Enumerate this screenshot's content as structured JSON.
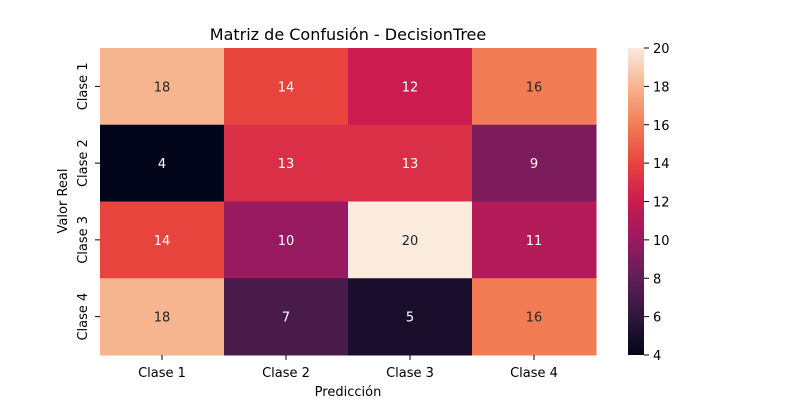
{
  "chart_data": {
    "type": "heatmap",
    "title": "Matriz de Confusión - DecisionTree",
    "xlabel": "Predicción",
    "ylabel": "Valor Real",
    "x_categories": [
      "Clase 1",
      "Clase 2",
      "Clase 3",
      "Clase 4"
    ],
    "y_categories": [
      "Clase 1",
      "Clase 2",
      "Clase 3",
      "Clase 4"
    ],
    "values": [
      [
        18,
        14,
        12,
        16
      ],
      [
        4,
        13,
        13,
        9
      ],
      [
        14,
        10,
        20,
        11
      ],
      [
        18,
        7,
        5,
        16
      ]
    ],
    "color_range": [
      4,
      20
    ],
    "colorbar_ticks": [
      4,
      6,
      8,
      10,
      12,
      14,
      16,
      18,
      20
    ],
    "colormap": "rocket",
    "annotation_colors": {
      "light": "#ffffff",
      "dark": "#262626"
    }
  }
}
